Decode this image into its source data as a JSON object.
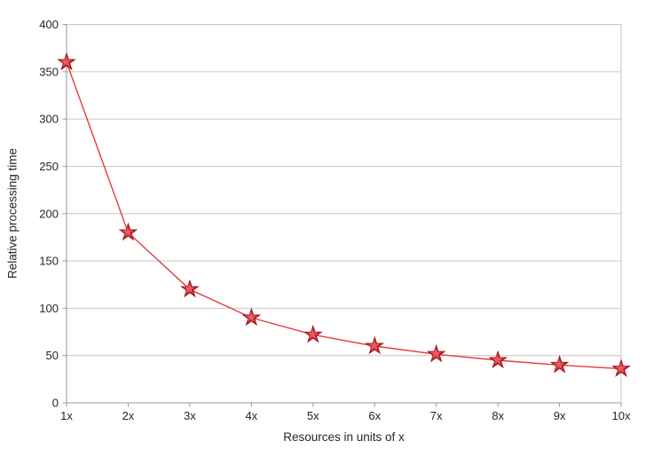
{
  "chart_data": {
    "type": "line",
    "title": "",
    "xlabel": "Resources in units of x",
    "ylabel": "Relative processing time",
    "categories": [
      "1x",
      "2x",
      "3x",
      "4x",
      "5x",
      "6x",
      "7x",
      "8x",
      "9x",
      "10x"
    ],
    "series": [
      {
        "name": "Relative processing time",
        "values": [
          360,
          180,
          120,
          90,
          72,
          60,
          51.4,
          45,
          40,
          36
        ]
      }
    ],
    "ylim": [
      0,
      400
    ],
    "y_ticks": [
      0,
      50,
      100,
      150,
      200,
      250,
      300,
      350,
      400
    ],
    "grid": "horizontal",
    "legend": "none",
    "marker": "star",
    "colors": {
      "line": "#e23b40",
      "marker_fill": "#dd3038",
      "marker_stroke": "#9e1a20",
      "grid": "#c6c6c6",
      "axis": "#9a9a9a",
      "text": "#262626",
      "background": "#ffffff"
    }
  }
}
